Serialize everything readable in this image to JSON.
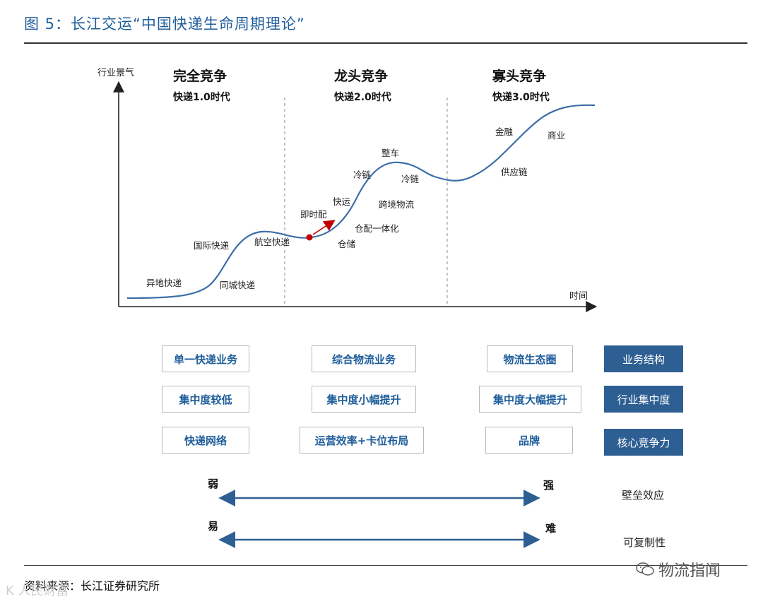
{
  "header": {
    "figure_title": "图 5：长江交运“中国快递生命周期理论”"
  },
  "chart": {
    "y_axis_label": "行业景气",
    "x_axis_label": "时间",
    "phases": [
      {
        "title": "完全竞争",
        "subtitle": "快递1.0时代"
      },
      {
        "title": "龙头竞争",
        "subtitle": "快递2.0时代"
      },
      {
        "title": "寡头竞争",
        "subtitle": "快递3.0时代"
      }
    ],
    "curve_labels": [
      "异地快递",
      "国际快递",
      "同城快递",
      "航空快递",
      "即时配",
      "快运",
      "仓储",
      "仓配一体化",
      "冷链",
      "整车",
      "冷链",
      "跨境物流",
      "金融",
      "商业",
      "供应链"
    ]
  },
  "table": {
    "rows": [
      {
        "cells": [
          "单一快递业务",
          "综合物流业务",
          "物流生态圈"
        ],
        "category": "业务结构"
      },
      {
        "cells": [
          "集中度较低",
          "集中度小幅提升",
          "集中度大幅提升"
        ],
        "category": "行业集中度"
      },
      {
        "cells": [
          "快递网络",
          "运营效率+卡位布局",
          "品牌"
        ],
        "category": "核心竞争力"
      }
    ]
  },
  "scales": [
    {
      "left": "弱",
      "right": "强",
      "label": "壁垒效应"
    },
    {
      "left": "易",
      "right": "难",
      "label": "可复制性"
    }
  ],
  "footer": {
    "source": "资料来源：长江证券研究所",
    "watermark": "物流指闻",
    "watermark_faint": "K 人民财富"
  },
  "colors": {
    "accent": "#1f5e9b",
    "curve": "#3d6fa8",
    "dark_box": "#2e5f93",
    "marker": "#c00000"
  }
}
